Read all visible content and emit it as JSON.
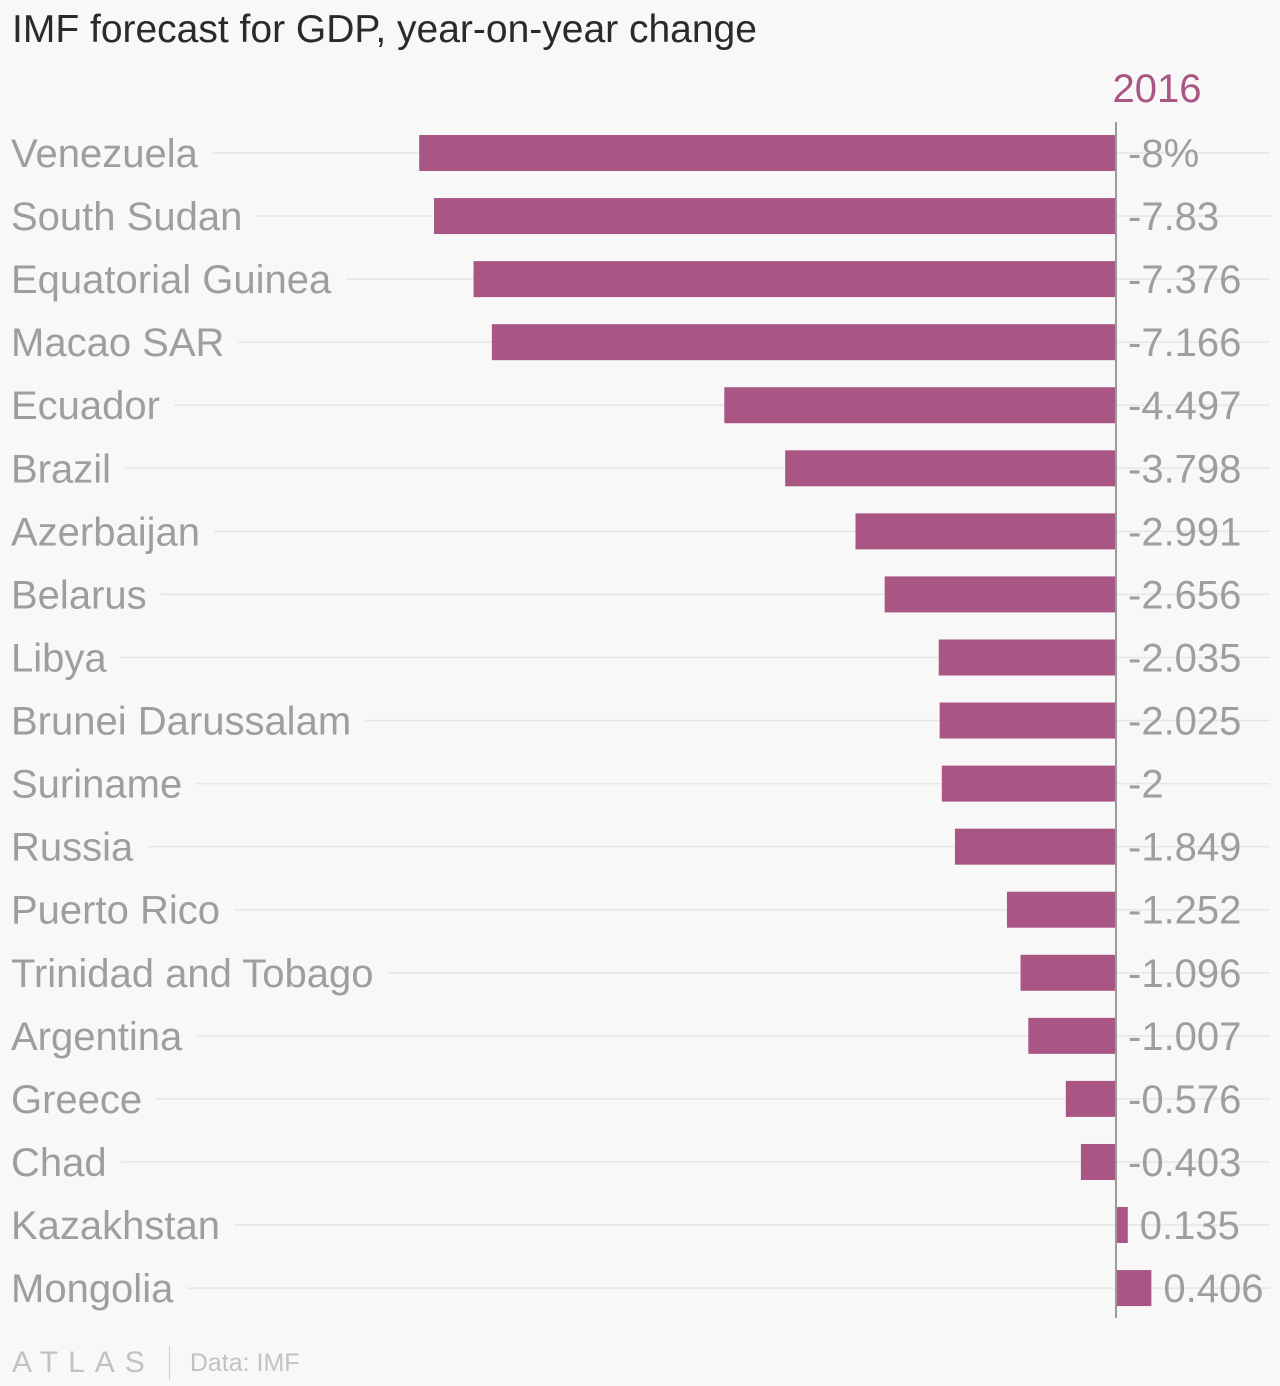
{
  "chart_data": {
    "type": "bar",
    "orientation": "horizontal",
    "title": "IMF forecast for GDP, year-on-year change",
    "series": [
      {
        "name": "2016",
        "color": "#aa5685",
        "values": [
          -8,
          -7.83,
          -7.376,
          -7.166,
          -4.497,
          -3.798,
          -2.991,
          -2.656,
          -2.035,
          -2.025,
          -2,
          -1.849,
          -1.252,
          -1.096,
          -1.007,
          -0.576,
          -0.403,
          0.135,
          0.406
        ],
        "value_labels": [
          "-8%",
          "-7.83",
          "-7.376",
          "-7.166",
          "-4.497",
          "-3.798",
          "-2.991",
          "-2.656",
          "-2.035",
          "-2.025",
          "-2",
          "-1.849",
          "-1.252",
          "-1.096",
          "-1.007",
          "-0.576",
          "-0.403",
          "0.135",
          "0.406"
        ]
      }
    ],
    "categories": [
      "Venezuela",
      "South Sudan",
      "Equatorial Guinea",
      "Macao SAR",
      "Ecuador",
      "Brazil",
      "Azerbaijan",
      "Belarus",
      "Libya",
      "Brunei Darussalam",
      "Suriname",
      "Russia",
      "Puerto Rico",
      "Trinidad and Tobago",
      "Argentina",
      "Greece",
      "Chad",
      "Kazakhstan",
      "Mongolia"
    ],
    "xlim": [
      -8,
      0.406
    ],
    "grid": true,
    "legend": "top-right"
  },
  "footer": {
    "brand": "ATLAS",
    "source": "Data: IMF"
  }
}
